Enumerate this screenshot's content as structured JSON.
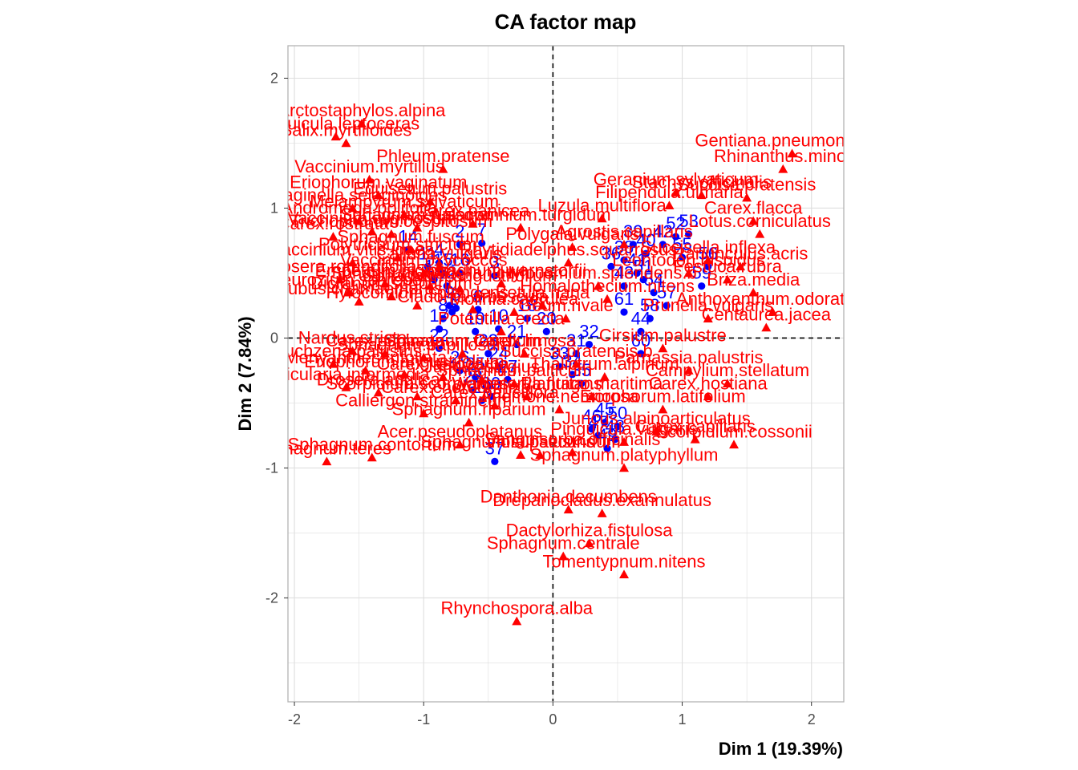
{
  "chart_data": {
    "type": "scatter",
    "title": "CA factor map",
    "xlabel": "Dim 1 (19.39%)",
    "ylabel": "Dim 2 (7.84%)",
    "xlim": [
      -2.05,
      2.25
    ],
    "ylim": [
      -2.8,
      2.25
    ],
    "xticks": [
      "-2",
      "-1",
      "0",
      "1",
      "2"
    ],
    "yticks": [
      "-2",
      "-1",
      "0",
      "1",
      "2"
    ],
    "grid": true,
    "legend": "none",
    "colors": {
      "rows": "#0000ff",
      "cols": "#ff0000",
      "grid": "#dedede",
      "panel_border": "#b3b3b3"
    },
    "reference_lines": {
      "x": 0,
      "y": 0,
      "style": "dashed"
    },
    "series": [
      {
        "name": "",
        "marker": "circle",
        "color": "#0000ff",
        "points": [
          {
            "label": "14",
            "x": -1.12,
            "y": 0.68
          },
          {
            "label": "2",
            "x": -0.72,
            "y": 0.72
          },
          {
            "label": "7",
            "x": -0.55,
            "y": 0.73
          },
          {
            "label": "4",
            "x": -0.88,
            "y": 0.58
          },
          {
            "label": "11",
            "x": -0.97,
            "y": 0.55
          },
          {
            "label": "15",
            "x": -0.85,
            "y": 0.5
          },
          {
            "label": "16",
            "x": -0.72,
            "y": 0.5
          },
          {
            "label": "13",
            "x": -0.92,
            "y": 0.45
          },
          {
            "label": "3",
            "x": -0.45,
            "y": 0.48
          },
          {
            "label": "12",
            "x": -0.82,
            "y": 0.4
          },
          {
            "label": "9",
            "x": -0.8,
            "y": 0.25
          },
          {
            "label": "5",
            "x": -0.75,
            "y": 0.23
          },
          {
            "label": "6",
            "x": -0.58,
            "y": 0.22
          },
          {
            "label": "1",
            "x": -0.78,
            "y": 0.2
          },
          {
            "label": "8",
            "x": -0.85,
            "y": 0.15
          },
          {
            "label": "18",
            "x": -0.2,
            "y": 0.15
          },
          {
            "label": "10",
            "x": -0.42,
            "y": 0.07
          },
          {
            "label": "17",
            "x": -0.88,
            "y": 0.07
          },
          {
            "label": "19",
            "x": -0.6,
            "y": 0.05
          },
          {
            "label": "20",
            "x": -0.05,
            "y": 0.05
          },
          {
            "label": "21",
            "x": -0.28,
            "y": -0.05
          },
          {
            "label": "22",
            "x": -0.88,
            "y": -0.08
          },
          {
            "label": "23",
            "x": -0.5,
            "y": -0.12
          },
          {
            "label": "24",
            "x": -0.42,
            "y": -0.22
          },
          {
            "label": "25",
            "x": -0.6,
            "y": -0.3
          },
          {
            "label": "26",
            "x": -0.72,
            "y": -0.25
          },
          {
            "label": "27",
            "x": -0.35,
            "y": -0.32
          },
          {
            "label": "28",
            "x": -0.62,
            "y": -0.4
          },
          {
            "label": "29",
            "x": -0.55,
            "y": -0.48
          },
          {
            "label": "30",
            "x": -0.48,
            "y": -0.45
          },
          {
            "label": "32",
            "x": 0.28,
            "y": -0.05
          },
          {
            "label": "31",
            "x": 0.18,
            "y": -0.12
          },
          {
            "label": "33",
            "x": 0.05,
            "y": -0.22
          },
          {
            "label": "34",
            "x": 0.15,
            "y": -0.28
          },
          {
            "label": "35",
            "x": 0.22,
            "y": -0.35
          },
          {
            "label": "36",
            "x": 0.45,
            "y": 0.55
          },
          {
            "label": "37",
            "x": -0.45,
            "y": -0.95
          },
          {
            "label": "38",
            "x": 0.55,
            "y": 0.6
          },
          {
            "label": "39",
            "x": 0.62,
            "y": 0.72
          },
          {
            "label": "40",
            "x": 0.72,
            "y": 0.65
          },
          {
            "label": "41",
            "x": 0.65,
            "y": 0.5
          },
          {
            "label": "42",
            "x": 0.85,
            "y": 0.72
          },
          {
            "label": "43",
            "x": 0.55,
            "y": 0.4
          },
          {
            "label": "44",
            "x": 0.68,
            "y": 0.05
          },
          {
            "label": "45",
            "x": 0.4,
            "y": -0.65
          },
          {
            "label": "46",
            "x": 0.3,
            "y": -0.7
          },
          {
            "label": "47",
            "x": 0.35,
            "y": -0.75
          },
          {
            "label": "48",
            "x": 0.48,
            "y": -0.78
          },
          {
            "label": "49",
            "x": 0.42,
            "y": -0.85
          },
          {
            "label": "50",
            "x": 0.5,
            "y": -0.68
          },
          {
            "label": "51",
            "x": 0.7,
            "y": 0.45
          },
          {
            "label": "52",
            "x": 0.95,
            "y": 0.78
          },
          {
            "label": "53",
            "x": 1.05,
            "y": 0.8
          },
          {
            "label": "54",
            "x": 0.78,
            "y": 0.35
          },
          {
            "label": "55",
            "x": 1.0,
            "y": 0.62
          },
          {
            "label": "56",
            "x": 1.2,
            "y": 0.55
          },
          {
            "label": "57",
            "x": 0.88,
            "y": 0.25
          },
          {
            "label": "58",
            "x": 0.75,
            "y": 0.15
          },
          {
            "label": "59",
            "x": 1.15,
            "y": 0.4
          },
          {
            "label": "60",
            "x": 0.68,
            "y": -0.12
          },
          {
            "label": "61",
            "x": 0.55,
            "y": 0.2
          }
        ]
      },
      {
        "name": "",
        "marker": "triangle",
        "color": "#ff0000",
        "points": [
          {
            "label": "Arctostaphylos.alpina",
            "x": -1.48,
            "y": 1.65
          },
          {
            "label": "Pinguicula.leptoceras",
            "x": -1.68,
            "y": 1.55
          },
          {
            "label": "Salix.myrtilloides",
            "x": -1.6,
            "y": 1.5
          },
          {
            "label": "Phleum.pratense",
            "x": -0.85,
            "y": 1.3
          },
          {
            "label": "Vaccinium.myrtillus",
            "x": -1.42,
            "y": 1.22
          },
          {
            "label": "Eriophorum.vaginatum",
            "x": -1.35,
            "y": 1.1
          },
          {
            "label": "Equisetum.palustris",
            "x": -0.95,
            "y": 1.05
          },
          {
            "label": "Selaginella.selaginoides",
            "x": -1.55,
            "y": 1.0
          },
          {
            "label": "Melampyrum.sylvaticum",
            "x": -1.15,
            "y": 0.95
          },
          {
            "label": "Andromeda.polifolia",
            "x": -1.5,
            "y": 0.9
          },
          {
            "label": "Carex.panicea",
            "x": -0.62,
            "y": 0.88
          },
          {
            "label": "Sphagnum.russowii",
            "x": -1.05,
            "y": 0.85
          },
          {
            "label": "Vaccinium.uliginosum",
            "x": -1.4,
            "y": 0.82
          },
          {
            "label": "Trichophorum.cespitosum",
            "x": -1.25,
            "y": 0.8
          },
          {
            "label": "Carex.rostrata",
            "x": -1.7,
            "y": 0.78
          },
          {
            "label": "Aulacomnium.turgidum",
            "x": -0.25,
            "y": 0.85
          },
          {
            "label": "Sphagnum.fuscum",
            "x": -1.1,
            "y": 0.68
          },
          {
            "label": "Polytrichum.strictum",
            "x": -1.2,
            "y": 0.62
          },
          {
            "label": "Vaccinium.vitis.idaea",
            "x": -1.55,
            "y": 0.58
          },
          {
            "label": "Calluna.vulgaris",
            "x": -0.88,
            "y": 0.55
          },
          {
            "label": "Vaccinium.oxycoccos",
            "x": -1.0,
            "y": 0.5
          },
          {
            "label": "Drosera.rotundifolia",
            "x": -1.65,
            "y": 0.45
          },
          {
            "label": "Empetrum.nigrum",
            "x": -1.3,
            "y": 0.42
          },
          {
            "label": "Sphagnum.magellanicum",
            "x": -0.95,
            "y": 0.4
          },
          {
            "label": "Sphagnum.angustifolium",
            "x": -0.72,
            "y": 0.38
          },
          {
            "label": "Sphagnum.warnstorfii",
            "x": -0.4,
            "y": 0.42
          },
          {
            "label": "Pleurozium.schreberi",
            "x": -1.58,
            "y": 0.35
          },
          {
            "label": "Dicranum.scoparium",
            "x": -1.25,
            "y": 0.32
          },
          {
            "label": "Rubus.chamaemorus",
            "x": -1.5,
            "y": 0.28
          },
          {
            "label": "Hylocomium.splendens",
            "x": -1.05,
            "y": 0.25
          },
          {
            "label": "Cladonia.arbuscula",
            "x": -0.62,
            "y": 0.22
          },
          {
            "label": "Molinia.caerulea",
            "x": -0.3,
            "y": 0.2
          },
          {
            "label": "Betula.nana",
            "x": -0.08,
            "y": 0.25
          },
          {
            "label": "Potentilla.erecta",
            "x": -0.4,
            "y": 0.05
          },
          {
            "label": "Nardus.stricta",
            "x": -1.55,
            "y": -0.1
          },
          {
            "label": "Carex.echinata",
            "x": -1.3,
            "y": -0.12
          },
          {
            "label": "Sphagnum.papillosum",
            "x": -1.0,
            "y": -0.15
          },
          {
            "label": "Sphagnum.tenellum",
            "x": -0.7,
            "y": -0.12
          },
          {
            "label": "Carex.limosa",
            "x": -0.22,
            "y": -0.12
          },
          {
            "label": "Scheuchzeria.palustris",
            "x": -1.7,
            "y": -0.2
          },
          {
            "label": "Menyanthes.trifoliata",
            "x": -1.45,
            "y": -0.25
          },
          {
            "label": "Eriophorum.angustifolium",
            "x": -1.15,
            "y": -0.28
          },
          {
            "label": "Carex.lasiocarpa",
            "x": -0.85,
            "y": -0.3
          },
          {
            "label": "Juncus.stygius",
            "x": -0.55,
            "y": -0.32
          },
          {
            "label": "Sphagnum.balticum",
            "x": -0.3,
            "y": -0.35
          },
          {
            "label": "Utricularia.intermedia",
            "x": -1.6,
            "y": -0.38
          },
          {
            "label": "Drosera.anglica",
            "x": -1.35,
            "y": -0.42
          },
          {
            "label": "Scorpidium.scorpioides",
            "x": -1.05,
            "y": -0.45
          },
          {
            "label": "Carex.chordorrhiza",
            "x": -0.75,
            "y": -0.48
          },
          {
            "label": "Carex.pauciflora",
            "x": -0.45,
            "y": -0.52
          },
          {
            "label": "Warnstorfia.fluitans",
            "x": -0.2,
            "y": -0.45
          },
          {
            "label": "Calliergon.stramineum",
            "x": -1.0,
            "y": -0.58
          },
          {
            "label": "Sphagnum.riparium",
            "x": -0.65,
            "y": -0.65
          },
          {
            "label": "Acer.pseudoplatanus",
            "x": -0.72,
            "y": -0.82
          },
          {
            "label": "Sphagnum.subsecundum",
            "x": -0.25,
            "y": -0.9
          },
          {
            "label": "Sphagnum.teres",
            "x": -1.75,
            "y": -0.95
          },
          {
            "label": "Sphagnum.contortum",
            "x": -1.4,
            "y": -0.92
          },
          {
            "label": "Viola.palustris",
            "x": -0.1,
            "y": -0.9
          },
          {
            "label": "Rhynchospora.alba",
            "x": -0.28,
            "y": -2.18
          },
          {
            "label": "Gentiana.pneumonanthe",
            "x": 1.85,
            "y": 1.42
          },
          {
            "label": "Rhinanthus.minor",
            "x": 1.78,
            "y": 1.3
          },
          {
            "label": "Geranium.sylvaticum",
            "x": 0.95,
            "y": 1.12
          },
          {
            "label": "Stachys.officinalis",
            "x": 1.15,
            "y": 1.1
          },
          {
            "label": "Succisa.pratensis",
            "x": 1.5,
            "y": 1.08
          },
          {
            "label": "Filipendula.ulmaria",
            "x": 0.9,
            "y": 1.02
          },
          {
            "label": "Luzula.multiflora",
            "x": 0.38,
            "y": 0.92
          },
          {
            "label": "Carex.flacca",
            "x": 1.55,
            "y": 0.9
          },
          {
            "label": "Lotus.corniculatus",
            "x": 1.6,
            "y": 0.8
          },
          {
            "label": "Polygala.vulgaris",
            "x": 0.15,
            "y": 0.7
          },
          {
            "label": "Agrostis.capillaris",
            "x": 0.55,
            "y": 0.72
          },
          {
            "label": "Rhytidiadelphus.squarrosus",
            "x": 0.12,
            "y": 0.58
          },
          {
            "label": "Hylocomium.splendens.b",
            "x": 0.35,
            "y": 0.4
          },
          {
            "label": "Homalothecium.nitens",
            "x": 0.42,
            "y": 0.3
          },
          {
            "label": "Geum.rivale",
            "x": 0.1,
            "y": 0.15
          },
          {
            "label": "Cirsium.palustre",
            "x": 0.85,
            "y": -0.08
          },
          {
            "label": "Succisa.pratensis.b",
            "x": 0.18,
            "y": -0.2
          },
          {
            "label": "Thalictrum.alpinum",
            "x": 0.4,
            "y": -0.3
          },
          {
            "label": "Parnassia.palustris",
            "x": 1.05,
            "y": -0.25
          },
          {
            "label": "Campylium.stellatum",
            "x": 1.35,
            "y": -0.35
          },
          {
            "label": "Plantago.maritima",
            "x": 0.3,
            "y": -0.45
          },
          {
            "label": "Anemone.nemorosa",
            "x": 0.05,
            "y": -0.55
          },
          {
            "label": "Eriophorum.latifolium",
            "x": 0.85,
            "y": -0.55
          },
          {
            "label": "Carex.hostiana",
            "x": 1.2,
            "y": -0.45
          },
          {
            "label": "Juncus.alpinoarticulatus",
            "x": 0.8,
            "y": -0.72
          },
          {
            "label": "Pinguicula.vulgaris",
            "x": 0.55,
            "y": -0.8
          },
          {
            "label": "Carex.capillaris",
            "x": 1.1,
            "y": -0.78
          },
          {
            "label": "Sanguisorba.officinalis",
            "x": 0.15,
            "y": -0.88
          },
          {
            "label": "Scorpidium.cossonii",
            "x": 1.4,
            "y": -0.82
          },
          {
            "label": "Sphagnum.platyphyllum",
            "x": 0.55,
            "y": -1.0
          },
          {
            "label": "Danthonia.decumbens",
            "x": 0.12,
            "y": -1.32
          },
          {
            "label": "Drepanocladus.exannulatus",
            "x": 0.38,
            "y": -1.35
          },
          {
            "label": "Dactylorhiza.fistulosa",
            "x": 0.28,
            "y": -1.58
          },
          {
            "label": "Sphagnum.centrale",
            "x": 0.08,
            "y": -1.68
          },
          {
            "label": "Tomentypnum.nitens",
            "x": 0.55,
            "y": -1.82
          },
          {
            "label": "Succisella.inflexa",
            "x": 1.2,
            "y": 0.6
          },
          {
            "label": "Festuca.rubra",
            "x": 1.35,
            "y": 0.45
          },
          {
            "label": "Briza.media",
            "x": 1.55,
            "y": 0.35
          },
          {
            "label": "Anthoxanthum.odoratum",
            "x": 1.7,
            "y": 0.2
          },
          {
            "label": "Prunella.vulgaris",
            "x": 1.2,
            "y": 0.15
          },
          {
            "label": "Centaurea.jacea",
            "x": 1.65,
            "y": 0.08
          },
          {
            "label": "Ranunculus.acris",
            "x": 1.45,
            "y": 0.55
          },
          {
            "label": "Leontodon.hispidus",
            "x": 1.05,
            "y": 0.5
          }
        ]
      }
    ]
  }
}
